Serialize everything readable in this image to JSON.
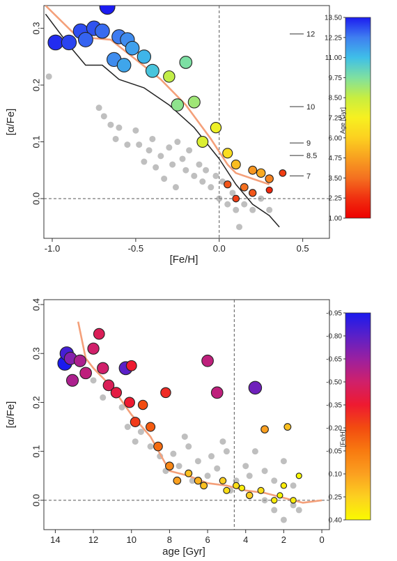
{
  "chart_data": [
    {
      "type": "scatter",
      "xlabel": "[Fe/H]",
      "ylabel": "[α/Fe]",
      "xlim": [
        -1.05,
        0.66
      ],
      "ylim": [
        -0.07,
        0.34
      ],
      "xticks": [
        "-1.0",
        "-0.5",
        "0.0",
        "0.5"
      ],
      "xtick_values": [
        -1.0,
        -0.5,
        0.0,
        0.5
      ],
      "yticks": [
        "0.0",
        "0.1",
        "0.2",
        "0.3"
      ],
      "ytick_values": [
        0.0,
        0.1,
        0.2,
        0.3
      ],
      "reference_lines": {
        "vertical": 0.0,
        "horizontal": 0.0
      },
      "colorbar": {
        "label": "Age [Gyr]",
        "ticks": [
          "13.50",
          "12.25",
          "11.00",
          "9.75",
          "8.50",
          "7.25",
          "6.00",
          "4.75",
          "3.50",
          "2.25",
          "1.00"
        ],
        "colors": [
          "#1c1cf0",
          "#3f7ff0",
          "#3fbfe8",
          "#7fe0a0",
          "#c8ee40",
          "#f7f020",
          "#fcd020",
          "#f8a020",
          "#f47020",
          "#f03010",
          "#ee0000"
        ]
      },
      "isochrone_labels": [
        {
          "text": "12",
          "y": 0.29
        },
        {
          "text": "10",
          "y": 0.162
        },
        {
          "text": "9",
          "y": 0.098
        },
        {
          "text": "8.5",
          "y": 0.076
        },
        {
          "text": "7",
          "y": 0.04
        }
      ],
      "series": [
        {
          "kind": "curve",
          "color": "#f4a07a",
          "points": [
            [
              -1.04,
              0.34
            ],
            [
              -0.85,
              0.285
            ],
            [
              -0.65,
              0.28
            ],
            [
              -0.5,
              0.245
            ],
            [
              -0.35,
              0.21
            ],
            [
              -0.2,
              0.165
            ],
            [
              -0.05,
              0.105
            ],
            [
              0.05,
              0.06
            ],
            [
              0.1,
              0.045
            ],
            [
              0.2,
              0.035
            ],
            [
              0.3,
              0.025
            ]
          ]
        },
        {
          "kind": "curve",
          "color": "#222222",
          "points": [
            [
              -1.04,
              0.325
            ],
            [
              -0.9,
              0.27
            ],
            [
              -0.8,
              0.235
            ],
            [
              -0.7,
              0.235
            ],
            [
              -0.6,
              0.21
            ],
            [
              -0.45,
              0.195
            ],
            [
              -0.3,
              0.165
            ],
            [
              -0.15,
              0.125
            ],
            [
              0.0,
              0.07
            ],
            [
              0.1,
              0.025
            ],
            [
              0.2,
              -0.01
            ],
            [
              0.3,
              -0.03
            ],
            [
              0.36,
              -0.05
            ]
          ]
        },
        {
          "kind": "gray-points",
          "points": [
            [
              -1.02,
              0.215
            ],
            [
              -0.72,
              0.16
            ],
            [
              -0.69,
              0.145
            ],
            [
              -0.65,
              0.13
            ],
            [
              -0.62,
              0.105
            ],
            [
              -0.55,
              0.095
            ],
            [
              -0.5,
              0.12
            ],
            [
              -0.48,
              0.095
            ],
            [
              -0.42,
              0.085
            ],
            [
              -0.4,
              0.105
            ],
            [
              -0.35,
              0.075
            ],
            [
              -0.3,
              0.09
            ],
            [
              -0.28,
              0.06
            ],
            [
              -0.25,
              0.1
            ],
            [
              -0.22,
              0.07
            ],
            [
              -0.2,
              0.05
            ],
            [
              -0.18,
              0.085
            ],
            [
              -0.15,
              0.04
            ],
            [
              -0.12,
              0.06
            ],
            [
              -0.1,
              0.03
            ],
            [
              -0.08,
              0.05
            ],
            [
              -0.05,
              0.02
            ],
            [
              -0.02,
              0.04
            ],
            [
              0.0,
              0.0
            ],
            [
              0.02,
              0.03
            ],
            [
              0.05,
              -0.01
            ],
            [
              0.08,
              0.01
            ],
            [
              0.1,
              -0.02
            ],
            [
              0.15,
              -0.01
            ],
            [
              0.2,
              -0.02
            ],
            [
              0.25,
              0.0
            ],
            [
              0.3,
              -0.02
            ],
            [
              0.12,
              -0.05
            ],
            [
              -0.33,
              0.035
            ],
            [
              -0.38,
              0.055
            ],
            [
              -0.6,
              0.125
            ],
            [
              -0.45,
              0.065
            ],
            [
              -0.26,
              0.02
            ]
          ]
        },
        {
          "kind": "colored-points",
          "value_key": "age",
          "points": [
            [
              -0.67,
              0.338,
              13.5
            ],
            [
              -0.98,
              0.275,
              13.3
            ],
            [
              -0.9,
              0.275,
              13.0
            ],
            [
              -0.83,
              0.295,
              12.9
            ],
            [
              -0.75,
              0.3,
              12.8
            ],
            [
              -0.8,
              0.28,
              12.6
            ],
            [
              -0.7,
              0.295,
              12.5
            ],
            [
              -0.6,
              0.285,
              12.3
            ],
            [
              -0.55,
              0.28,
              12.0
            ],
            [
              -0.52,
              0.265,
              11.6
            ],
            [
              -0.63,
              0.245,
              12.0
            ],
            [
              -0.57,
              0.235,
              11.5
            ],
            [
              -0.45,
              0.25,
              11.2
            ],
            [
              -0.4,
              0.225,
              10.8
            ],
            [
              -0.3,
              0.215,
              8.6
            ],
            [
              -0.2,
              0.24,
              9.8
            ],
            [
              -0.25,
              0.165,
              9.5
            ],
            [
              -0.15,
              0.17,
              9.2
            ],
            [
              -0.1,
              0.1,
              8.0
            ],
            [
              -0.02,
              0.125,
              7.5
            ],
            [
              0.05,
              0.08,
              6.5
            ],
            [
              0.1,
              0.06,
              5.5
            ],
            [
              0.2,
              0.05,
              4.5
            ],
            [
              0.25,
              0.045,
              5.0
            ],
            [
              0.3,
              0.035,
              4.0
            ],
            [
              0.15,
              0.02,
              3.5
            ],
            [
              0.05,
              0.025,
              3.0
            ],
            [
              0.1,
              0.0,
              2.5
            ],
            [
              0.2,
              0.01,
              3.0
            ],
            [
              0.3,
              0.015,
              2.0
            ],
            [
              0.38,
              0.045,
              2.5
            ]
          ]
        }
      ]
    },
    {
      "type": "scatter",
      "xlabel": "age [Gyr]",
      "ylabel": "[α/Fe]",
      "xlim": [
        14.6,
        -0.4
      ],
      "ylim": [
        -0.06,
        0.41
      ],
      "xticks": [
        "14",
        "12",
        "10",
        "8",
        "6",
        "4",
        "2",
        "0"
      ],
      "xtick_values": [
        14,
        12,
        10,
        8,
        6,
        4,
        2,
        0
      ],
      "yticks": [
        "0.0",
        "0.1",
        "0.2",
        "0.3",
        "0.4"
      ],
      "ytick_values": [
        0.0,
        0.1,
        0.2,
        0.3,
        0.4
      ],
      "reference_lines": {
        "vertical": 4.6,
        "horizontal": 0.0
      },
      "colorbar": {
        "label": "[Fe/H]",
        "ticks": [
          "-0.95",
          "-0.80",
          "-0.65",
          "-0.50",
          "-0.35",
          "-0.20",
          "-0.05",
          "0.10",
          "0.25",
          "0.40"
        ],
        "colors": [
          "#1a1aee",
          "#5a20c8",
          "#9a20a0",
          "#d0206a",
          "#ee1a30",
          "#f24c10",
          "#f87a10",
          "#fba020",
          "#fcd020",
          "#fafa00"
        ]
      },
      "series": [
        {
          "kind": "curve",
          "color": "#f4a07a",
          "points": [
            [
              12.8,
              0.365
            ],
            [
              12.4,
              0.29
            ],
            [
              12.0,
              0.27
            ],
            [
              11.0,
              0.23
            ],
            [
              10.0,
              0.175
            ],
            [
              9.0,
              0.13
            ],
            [
              8.0,
              0.06
            ],
            [
              7.0,
              0.05
            ],
            [
              6.0,
              0.035
            ],
            [
              5.0,
              0.03
            ],
            [
              4.0,
              0.02
            ],
            [
              3.0,
              0.015
            ],
            [
              2.0,
              0.005
            ],
            [
              1.0,
              -0.005
            ],
            [
              0.0,
              0.0
            ]
          ]
        },
        {
          "kind": "gray-points",
          "points": [
            [
              12.0,
              0.245
            ],
            [
              11.5,
              0.21
            ],
            [
              10.5,
              0.19
            ],
            [
              9.5,
              0.14
            ],
            [
              9.0,
              0.11
            ],
            [
              8.5,
              0.09
            ],
            [
              8.2,
              0.06
            ],
            [
              7.8,
              0.095
            ],
            [
              7.5,
              0.07
            ],
            [
              7.0,
              0.11
            ],
            [
              6.5,
              0.08
            ],
            [
              6.0,
              0.05
            ],
            [
              5.8,
              0.09
            ],
            [
              5.5,
              0.065
            ],
            [
              5.0,
              0.1
            ],
            [
              4.5,
              0.04
            ],
            [
              4.0,
              0.07
            ],
            [
              3.8,
              0.05
            ],
            [
              3.5,
              0.1
            ],
            [
              3.0,
              0.06
            ],
            [
              2.5,
              0.04
            ],
            [
              2.0,
              0.08
            ],
            [
              1.5,
              0.03
            ],
            [
              1.2,
              0.05
            ],
            [
              3.0,
              0.0
            ],
            [
              2.5,
              -0.02
            ],
            [
              2.0,
              -0.04
            ],
            [
              1.5,
              -0.01
            ],
            [
              1.2,
              -0.02
            ],
            [
              10.2,
              0.15
            ],
            [
              9.8,
              0.12
            ],
            [
              6.8,
              0.04
            ],
            [
              7.2,
              0.13
            ],
            [
              5.2,
              0.12
            ],
            [
              4.8,
              0.02
            ]
          ]
        },
        {
          "kind": "colored-points",
          "value_key": "feh",
          "points": [
            [
              13.5,
              0.28,
              -0.95
            ],
            [
              13.4,
              0.3,
              -0.85
            ],
            [
              13.2,
              0.29,
              -0.7
            ],
            [
              12.7,
              0.285,
              -0.6
            ],
            [
              12.4,
              0.26,
              -0.55
            ],
            [
              12.0,
              0.31,
              -0.5
            ],
            [
              11.7,
              0.34,
              -0.45
            ],
            [
              11.5,
              0.27,
              -0.5
            ],
            [
              13.1,
              0.245,
              -0.6
            ],
            [
              11.2,
              0.235,
              -0.45
            ],
            [
              10.8,
              0.22,
              -0.4
            ],
            [
              10.3,
              0.27,
              -0.8
            ],
            [
              10.1,
              0.2,
              -0.35
            ],
            [
              10.0,
              0.275,
              -0.35
            ],
            [
              9.8,
              0.16,
              -0.25
            ],
            [
              9.4,
              0.195,
              -0.2
            ],
            [
              9.0,
              0.15,
              -0.15
            ],
            [
              8.6,
              0.11,
              -0.1
            ],
            [
              8.2,
              0.22,
              -0.3
            ],
            [
              8.0,
              0.07,
              0.0
            ],
            [
              7.6,
              0.04,
              0.1
            ],
            [
              7.0,
              0.055,
              0.2
            ],
            [
              6.0,
              0.285,
              -0.55
            ],
            [
              6.5,
              0.04,
              0.15
            ],
            [
              6.2,
              0.03,
              0.2
            ],
            [
              5.5,
              0.22,
              -0.55
            ],
            [
              5.2,
              0.04,
              0.25
            ],
            [
              5.0,
              0.02,
              0.3
            ],
            [
              4.5,
              0.03,
              0.3
            ],
            [
              4.2,
              0.025,
              0.35
            ],
            [
              3.8,
              0.01,
              0.25
            ],
            [
              3.5,
              0.23,
              -0.75
            ],
            [
              3.2,
              0.02,
              0.3
            ],
            [
              3.0,
              0.145,
              0.1
            ],
            [
              2.5,
              0.0,
              0.35
            ],
            [
              2.2,
              0.01,
              0.4
            ],
            [
              1.8,
              0.15,
              0.2
            ],
            [
              2.0,
              0.03,
              0.35
            ],
            [
              1.2,
              0.05,
              0.4
            ],
            [
              1.5,
              0.0,
              0.35
            ]
          ]
        }
      ]
    }
  ]
}
